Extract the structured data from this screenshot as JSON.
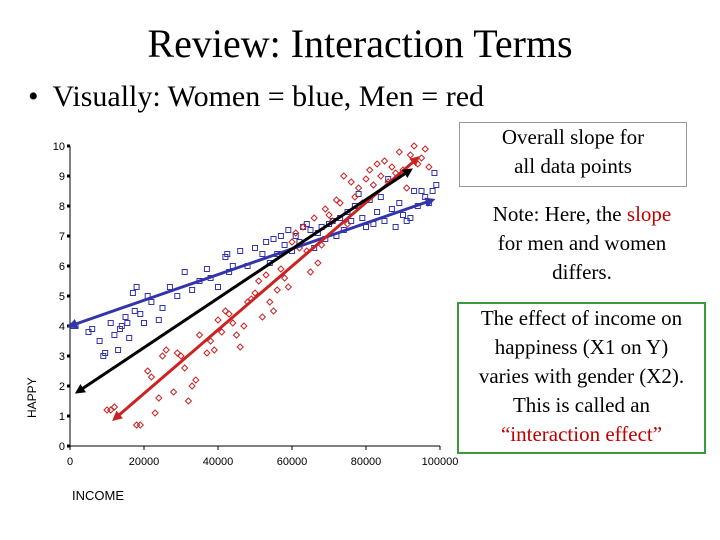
{
  "title": "Review:  Interaction Terms",
  "bullet": {
    "marker": "•",
    "text": "Visually:  Women = blue, Men = red"
  },
  "notes": {
    "overall_line1": "Overall slope for",
    "overall_line2": "all data points",
    "slope_line1_a": "Note:  Here, the ",
    "slope_line1_b": "slope",
    "slope_line2": "for men and women",
    "slope_line3": "differs.",
    "interaction_line1": "The effect of income on",
    "interaction_line2": "happiness (X1 on Y)",
    "interaction_line3": "varies with gender (X2).",
    "interaction_line4": "This is called an",
    "interaction_line5": "“interaction effect”"
  },
  "colors": {
    "women": "#3333aa",
    "men": "#cc2222",
    "overall": "#000000",
    "interaction_border": "#3a9a3a"
  },
  "chart_data": {
    "type": "scatter",
    "title": "",
    "xlabel": "INCOME",
    "ylabel": "HAPPY",
    "xlim": [
      0,
      100000
    ],
    "ylim": [
      0,
      10
    ],
    "xticks": [
      0,
      20000,
      40000,
      60000,
      80000,
      100000
    ],
    "yticks": [
      0,
      1,
      2,
      3,
      4,
      5,
      6,
      7,
      8,
      9,
      10
    ],
    "series": [
      {
        "name": "Women",
        "marker": "square",
        "points": [
          [
            1000,
            4.0
          ],
          [
            1500,
            4.0
          ],
          [
            5000,
            3.8
          ],
          [
            6000,
            3.9
          ],
          [
            8000,
            3.5
          ],
          [
            9000,
            3.0
          ],
          [
            9500,
            3.1
          ],
          [
            11000,
            4.1
          ],
          [
            12000,
            3.7
          ],
          [
            13000,
            3.2
          ],
          [
            13500,
            3.9
          ],
          [
            14000,
            4.0
          ],
          [
            15000,
            4.3
          ],
          [
            15500,
            4.1
          ],
          [
            16000,
            3.6
          ],
          [
            17000,
            5.1
          ],
          [
            17500,
            4.5
          ],
          [
            18000,
            5.3
          ],
          [
            19000,
            4.4
          ],
          [
            20000,
            4.1
          ],
          [
            21000,
            5.0
          ],
          [
            22000,
            4.8
          ],
          [
            24000,
            4.2
          ],
          [
            25000,
            4.6
          ],
          [
            27000,
            5.3
          ],
          [
            29000,
            5.0
          ],
          [
            31000,
            5.8
          ],
          [
            33000,
            5.2
          ],
          [
            35000,
            5.5
          ],
          [
            37000,
            5.9
          ],
          [
            38000,
            5.6
          ],
          [
            40000,
            5.3
          ],
          [
            42000,
            6.3
          ],
          [
            42500,
            6.4
          ],
          [
            43000,
            5.8
          ],
          [
            44000,
            6.0
          ],
          [
            46000,
            6.5
          ],
          [
            48000,
            6.0
          ],
          [
            50000,
            6.6
          ],
          [
            52000,
            6.4
          ],
          [
            53000,
            6.8
          ],
          [
            54000,
            6.1
          ],
          [
            55000,
            6.9
          ],
          [
            56000,
            6.4
          ],
          [
            57000,
            7.0
          ],
          [
            58000,
            6.7
          ],
          [
            59000,
            7.2
          ],
          [
            60000,
            6.5
          ],
          [
            61000,
            7.0
          ],
          [
            62000,
            6.8
          ],
          [
            63000,
            7.3
          ],
          [
            64000,
            7.4
          ],
          [
            65000,
            7.2
          ],
          [
            66000,
            6.6
          ],
          [
            67000,
            7.1
          ],
          [
            68000,
            7.3
          ],
          [
            69000,
            6.9
          ],
          [
            70000,
            7.4
          ],
          [
            71000,
            7.5
          ],
          [
            72000,
            7.0
          ],
          [
            73000,
            7.6
          ],
          [
            74000,
            7.2
          ],
          [
            75000,
            7.8
          ],
          [
            76000,
            7.5
          ],
          [
            77000,
            8.0
          ],
          [
            78000,
            8.4
          ],
          [
            79000,
            7.6
          ],
          [
            80000,
            7.3
          ],
          [
            81000,
            8.2
          ],
          [
            82000,
            7.4
          ],
          [
            83000,
            7.8
          ],
          [
            84000,
            8.3
          ],
          [
            85000,
            7.5
          ],
          [
            86000,
            8.9
          ],
          [
            87000,
            7.9
          ],
          [
            88000,
            7.3
          ],
          [
            89000,
            8.1
          ],
          [
            90000,
            7.7
          ],
          [
            91000,
            7.5
          ],
          [
            92000,
            7.6
          ],
          [
            93000,
            8.5
          ],
          [
            94000,
            8.0
          ],
          [
            95000,
            8.5
          ],
          [
            96000,
            8.3
          ],
          [
            97000,
            8.1
          ],
          [
            98000,
            8.5
          ],
          [
            98500,
            9.1
          ],
          [
            99000,
            8.7
          ]
        ]
      },
      {
        "name": "Men",
        "marker": "diamond",
        "points": [
          [
            10000,
            1.2
          ],
          [
            11000,
            1.2
          ],
          [
            12000,
            1.3
          ],
          [
            18000,
            0.7
          ],
          [
            19000,
            0.7
          ],
          [
            21000,
            2.5
          ],
          [
            22000,
            2.3
          ],
          [
            23000,
            1.1
          ],
          [
            24000,
            1.6
          ],
          [
            25000,
            3.0
          ],
          [
            26000,
            3.2
          ],
          [
            28000,
            1.8
          ],
          [
            29000,
            3.1
          ],
          [
            30000,
            3.0
          ],
          [
            31000,
            2.6
          ],
          [
            32000,
            1.5
          ],
          [
            33000,
            2.0
          ],
          [
            34000,
            2.2
          ],
          [
            35000,
            3.7
          ],
          [
            37000,
            3.1
          ],
          [
            38000,
            3.5
          ],
          [
            39000,
            3.2
          ],
          [
            40000,
            4.2
          ],
          [
            41000,
            3.8
          ],
          [
            42000,
            4.5
          ],
          [
            43000,
            4.4
          ],
          [
            44000,
            4.1
          ],
          [
            45000,
            3.7
          ],
          [
            46000,
            3.3
          ],
          [
            47000,
            4.0
          ],
          [
            48000,
            4.8
          ],
          [
            49000,
            4.9
          ],
          [
            50000,
            5.1
          ],
          [
            51000,
            5.5
          ],
          [
            52000,
            4.3
          ],
          [
            53000,
            5.7
          ],
          [
            54000,
            4.8
          ],
          [
            55000,
            4.5
          ],
          [
            56000,
            5.2
          ],
          [
            57000,
            5.9
          ],
          [
            58000,
            5.6
          ],
          [
            59000,
            5.3
          ],
          [
            60000,
            6.8
          ],
          [
            61000,
            7.1
          ],
          [
            62000,
            6.6
          ],
          [
            63000,
            7.3
          ],
          [
            64000,
            6.5
          ],
          [
            65000,
            5.8
          ],
          [
            66000,
            7.6
          ],
          [
            67000,
            6.1
          ],
          [
            68000,
            6.7
          ],
          [
            69000,
            7.9
          ],
          [
            70000,
            7.7
          ],
          [
            71000,
            7.5
          ],
          [
            72000,
            8.2
          ],
          [
            73000,
            8.1
          ],
          [
            74000,
            9.0
          ],
          [
            75000,
            7.4
          ],
          [
            76000,
            8.8
          ],
          [
            77000,
            8.3
          ],
          [
            78000,
            8.6
          ],
          [
            79000,
            8.1
          ],
          [
            80000,
            8.9
          ],
          [
            81000,
            9.2
          ],
          [
            82000,
            8.7
          ],
          [
            83000,
            9.4
          ],
          [
            84000,
            9.0
          ],
          [
            85000,
            9.5
          ],
          [
            86000,
            8.8
          ],
          [
            87000,
            9.3
          ],
          [
            88000,
            9.1
          ],
          [
            89000,
            9.8
          ],
          [
            90000,
            9.2
          ],
          [
            91000,
            8.6
          ],
          [
            92000,
            9.7
          ],
          [
            93000,
            10.0
          ],
          [
            94000,
            9.4
          ],
          [
            95000,
            9.6
          ],
          [
            96000,
            9.9
          ],
          [
            97000,
            9.3
          ]
        ]
      }
    ],
    "regression_lines": [
      {
        "name": "Women slope",
        "color_key": "women",
        "from": [
          0,
          4.0
        ],
        "to": [
          98000,
          8.2
        ]
      },
      {
        "name": "Men slope",
        "color_key": "men",
        "from": [
          12000,
          0.9
        ],
        "to": [
          94000,
          9.6
        ]
      },
      {
        "name": "Overall slope",
        "color_key": "overall",
        "from": [
          2000,
          1.8
        ],
        "to": [
          92000,
          9.2
        ]
      }
    ]
  }
}
